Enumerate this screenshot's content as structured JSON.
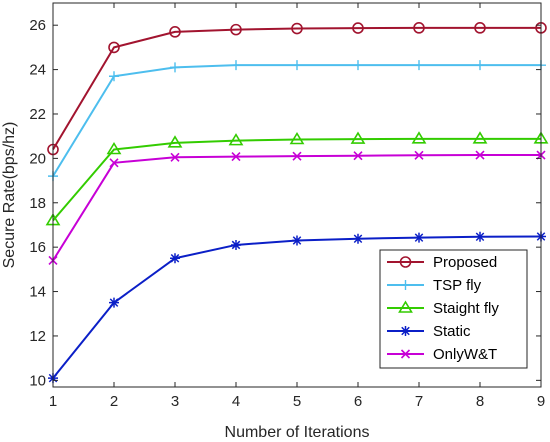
{
  "chart_data": {
    "type": "line",
    "title": "",
    "xlabel": "Number of Iterations",
    "ylabel": "Secure Rate(bps/hz)",
    "xlim": [
      1,
      9
    ],
    "ylim": [
      9.7,
      27
    ],
    "xticks": [
      1,
      2,
      3,
      4,
      5,
      6,
      7,
      8,
      9
    ],
    "yticks": [
      10,
      12,
      14,
      16,
      18,
      20,
      22,
      24,
      26
    ],
    "grid": false,
    "legend_position": "bottom-right",
    "x": [
      1,
      2,
      3,
      4,
      5,
      6,
      7,
      8,
      9
    ],
    "series": [
      {
        "name": "Proposed",
        "color": "#a2142f",
        "marker": "circle",
        "values": [
          20.4,
          25.0,
          25.7,
          25.8,
          25.85,
          25.87,
          25.88,
          25.88,
          25.88
        ]
      },
      {
        "name": "TSP fly",
        "color": "#4dbeee",
        "marker": "plus",
        "values": [
          19.2,
          23.7,
          24.1,
          24.2,
          24.2,
          24.2,
          24.2,
          24.2,
          24.2
        ]
      },
      {
        "name": "Staight fly",
        "color": "#33cc00",
        "marker": "triangle",
        "values": [
          17.2,
          20.4,
          20.7,
          20.8,
          20.85,
          20.87,
          20.88,
          20.88,
          20.88
        ]
      },
      {
        "name": "Static",
        "color": "#0b1fc7",
        "marker": "star",
        "values": [
          10.1,
          13.5,
          15.5,
          16.1,
          16.3,
          16.38,
          16.43,
          16.47,
          16.48
        ]
      },
      {
        "name": "OnlyW&T",
        "color": "#c700d6",
        "marker": "x",
        "values": [
          15.4,
          19.8,
          20.05,
          20.08,
          20.1,
          20.12,
          20.14,
          20.15,
          20.15
        ]
      }
    ]
  }
}
